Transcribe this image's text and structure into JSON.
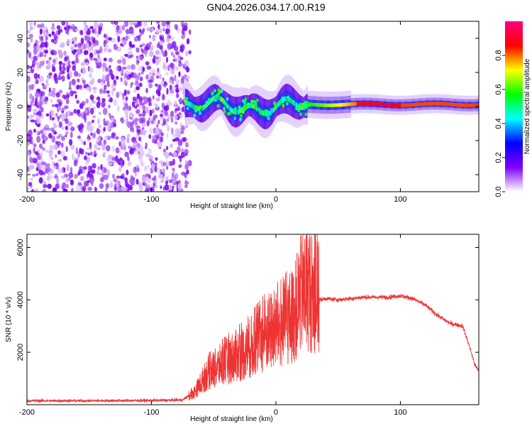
{
  "title": "GN04.2026.034.17.00.R19",
  "chart_data": [
    {
      "type": "heatmap",
      "name": "spectrogram",
      "xlabel": "Height of straight line (km)",
      "ylabel": "Frequency (Hz)",
      "xlim": [
        -200,
        163
      ],
      "ylim": [
        -50,
        50
      ],
      "xticks": [
        -200,
        -100,
        0,
        100
      ],
      "xtick_labels": [
        "-200",
        "-100",
        "0",
        "100"
      ],
      "yticks": [
        -40,
        -20,
        0,
        20,
        40
      ],
      "ytick_labels": [
        "-40",
        "-20",
        "0",
        "20",
        "40"
      ],
      "noise_region_x": [
        -200,
        -73
      ],
      "signal_region_x": [
        -73,
        163
      ],
      "line_center_hz": 0,
      "peak_amplitude_region_x": [
        65,
        100
      ],
      "colorbar": {
        "label": "Normalized spectral amplitude",
        "range": [
          0,
          1
        ],
        "ticks": [
          0.0,
          0.2,
          0.4,
          0.6,
          0.8
        ],
        "tick_labels": [
          "0.0",
          "0.2",
          "0.4",
          "0.6",
          "0.8"
        ],
        "colors": [
          "#ffffff",
          "#7f00ff",
          "#0000ff",
          "#00ffff",
          "#00ff00",
          "#ffff00",
          "#ff0000",
          "#ff0080"
        ]
      }
    },
    {
      "type": "line",
      "name": "snr",
      "xlabel": "Height of straight line (km)",
      "ylabel": "SNR (10 * v/v)",
      "xlim": [
        -200,
        163
      ],
      "ylim": [
        0,
        6500
      ],
      "xticks": [
        -200,
        -100,
        0,
        100
      ],
      "xtick_labels": [
        "-200",
        "-100",
        "0",
        "100"
      ],
      "yticks": [
        2000,
        4000,
        6000
      ],
      "ytick_labels": [
        "2000",
        "4000",
        "6000"
      ],
      "color": "#ee3333",
      "x": [
        -200,
        -150,
        -100,
        -75,
        -65,
        -55,
        -45,
        -35,
        -25,
        -15,
        -5,
        5,
        15,
        20,
        25,
        30,
        35,
        40,
        50,
        60,
        70,
        80,
        90,
        100,
        110,
        120,
        130,
        140,
        150,
        155,
        160,
        163
      ],
      "y": [
        150,
        150,
        160,
        180,
        500,
        1200,
        1500,
        1800,
        2000,
        2400,
        2800,
        3000,
        3500,
        4200,
        4500,
        4200,
        4000,
        4050,
        4000,
        4050,
        4100,
        4100,
        4100,
        4150,
        4050,
        3800,
        3400,
        3100,
        3000,
        2300,
        1500,
        1300
      ]
    }
  ]
}
